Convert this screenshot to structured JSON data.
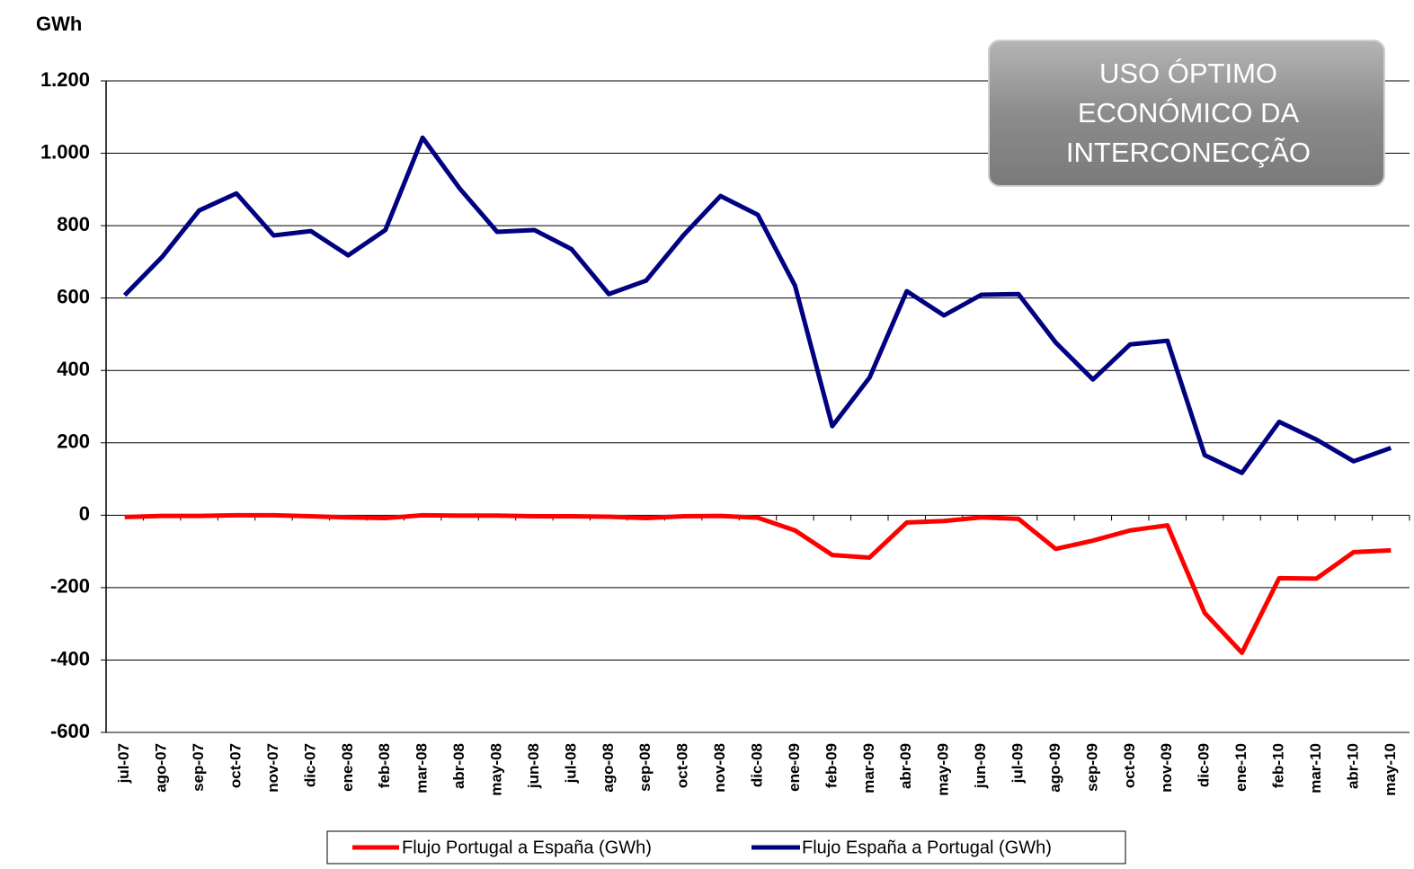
{
  "chart_data": {
    "type": "line",
    "ylabel": "GWh",
    "annotation": [
      "USO ÓPTIMO",
      "ECONÓMICO DA",
      "INTERCONECÇÃO"
    ],
    "categories": [
      "jul-07",
      "ago-07",
      "sep-07",
      "oct-07",
      "nov-07",
      "dic-07",
      "ene-08",
      "feb-08",
      "mar-08",
      "abr-08",
      "may-08",
      "jun-08",
      "jul-08",
      "ago-08",
      "sep-08",
      "oct-08",
      "nov-08",
      "dic-08",
      "ene-09",
      "feb-09",
      "mar-09",
      "abr-09",
      "may-09",
      "jun-09",
      "jul-09",
      "ago-09",
      "sep-09",
      "oct-09",
      "nov-09",
      "dic-09",
      "ene-10",
      "feb-10",
      "mar-10",
      "abr-10",
      "may-10"
    ],
    "series": [
      {
        "name": "Flujo Portugal a España (GWh)",
        "color": "#ff0000",
        "values": [
          -5,
          -2,
          -2,
          0,
          0,
          -3,
          -6,
          -8,
          0,
          -1,
          -1,
          -3,
          -3,
          -4,
          -8,
          -3,
          -2,
          -7,
          -42,
          -110,
          -117,
          -20,
          -16,
          -6,
          -10,
          -93,
          -70,
          -42,
          -28,
          -270,
          -380,
          -174,
          -175,
          -102,
          -97
        ]
      },
      {
        "name": "Flujo España a Portugal (GWh)",
        "color": "#000080",
        "values": [
          608,
          713,
          842,
          889,
          773,
          785,
          718,
          788,
          1043,
          902,
          783,
          788,
          735,
          611,
          648,
          773,
          882,
          830,
          634,
          246,
          380,
          619,
          552,
          609,
          611,
          477,
          375,
          472,
          482,
          166,
          117,
          258,
          209,
          149,
          186
        ]
      }
    ],
    "ylim": [
      -600,
      1200
    ],
    "yticks": [
      -600,
      -400,
      -200,
      0,
      200,
      400,
      600,
      800,
      {
        "value": 1000,
        "label": "1.000"
      },
      {
        "value": 1200,
        "label": "1.200"
      }
    ],
    "grid": true
  }
}
